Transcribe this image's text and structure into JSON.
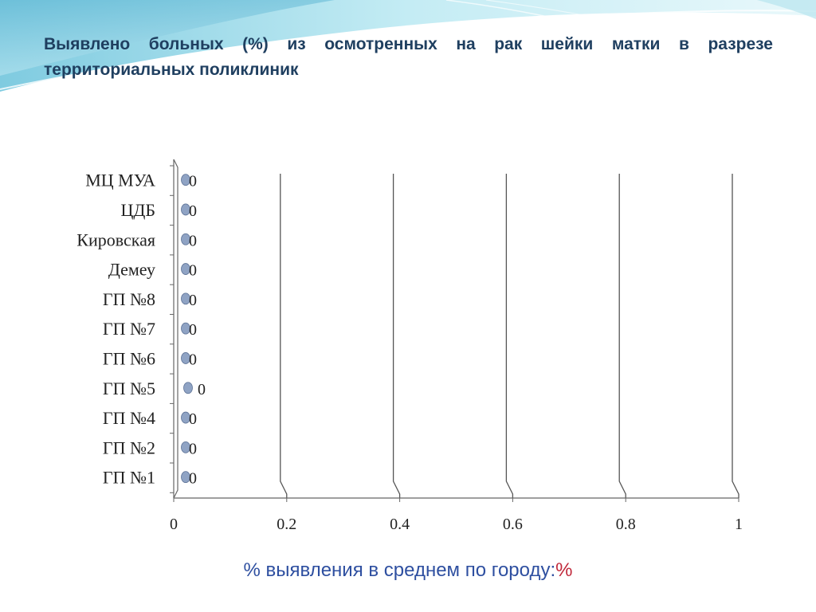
{
  "slide": {
    "title": "Выявлено больных (%) из осмотренных на рак шейки матки в разрезе территориальных поликлиник",
    "footer_text": "% выявления в среднем по городу:",
    "footer_value": "%"
  },
  "chart_data": {
    "type": "scatter",
    "orientation": "horizontal",
    "title": "",
    "xlabel": "",
    "ylabel": "",
    "xlim": [
      0,
      1
    ],
    "x_ticks": [
      "0",
      "0.2",
      "0.4",
      "0.6",
      "0.8",
      "1"
    ],
    "categories": [
      "ГП №1",
      "ГП №2",
      "ГП №4",
      "ГП №5",
      "ГП  №7",
      "ГП №6",
      "ГП №8",
      "Демеу",
      "Кировская",
      "ЦДБ",
      "МЦ МУА"
    ],
    "display_order_top_to_bottom": [
      "МЦ МУА",
      "ЦДБ",
      "Кировская",
      "Демеу",
      "ГП №8",
      "ГП  №7",
      "ГП №6",
      "ГП №5",
      "ГП №4",
      "ГП №2",
      "ГП №1"
    ],
    "series": [
      {
        "values": [
          0,
          0,
          0,
          0,
          0,
          0,
          0,
          0,
          0,
          0,
          0
        ],
        "labels": [
          "0",
          "0",
          "0",
          "0",
          "0",
          "0",
          "0",
          "0",
          "0",
          "0",
          "0"
        ]
      }
    ],
    "grid": true,
    "legend": "none",
    "colors": {
      "marker": "#8fa3c4",
      "marker_edge": "#5d7296",
      "grid": "#555555",
      "axis": "#666666"
    }
  }
}
